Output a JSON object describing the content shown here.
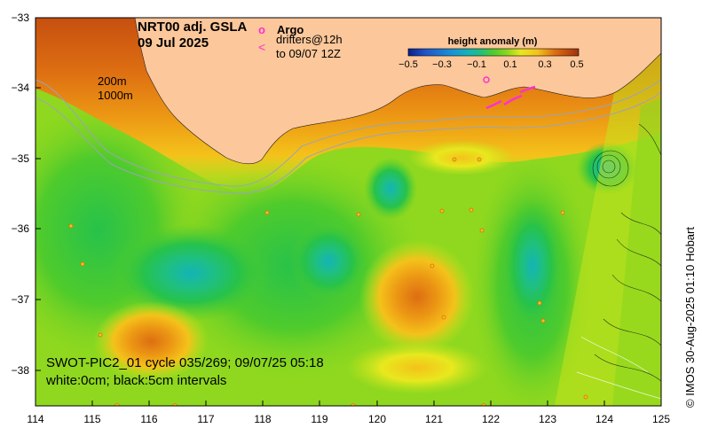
{
  "title": {
    "line1": "NRT00 adj. GSLA",
    "line2": "09 Jul 2025"
  },
  "legend": {
    "argo_symbol": "o",
    "argo_label": "Argo",
    "drifter_symbol": "<",
    "drifter_label_1": "drifters@12h",
    "drifter_label_2": "to 09/07 12Z"
  },
  "colorbar": {
    "title": "height anomaly (m)",
    "ticks": [
      "−0.5",
      "−0.3",
      "−0.1",
      "0.1",
      "0.3",
      "0.5"
    ],
    "colors": [
      "#0b1f8c",
      "#1f55c8",
      "#1c8fd6",
      "#14b3b8",
      "#1ebf84",
      "#27c24a",
      "#4fcb2c",
      "#8bd61f",
      "#c4e41c",
      "#e8e81e",
      "#f4c21a",
      "#ec9614",
      "#dd6e12",
      "#c64f10",
      "#a3300e"
    ]
  },
  "depth_labels": [
    "200m",
    "1000m"
  ],
  "caption": {
    "line1": "SWOT-PIC2_01 cycle 035/269; 09/07/25 05:18",
    "line2": "white:0cm; black:5cm intervals"
  },
  "credit": "© IMOS 30-Aug-2025 01:10 Hobart",
  "axes": {
    "x_ticks": [
      "114",
      "115",
      "116",
      "117",
      "118",
      "119",
      "120",
      "121",
      "122",
      "123",
      "124",
      "125"
    ],
    "y_ticks": [
      "−33",
      "−34",
      "−35",
      "−36",
      "−37",
      "−38"
    ],
    "lon_range": [
      114,
      125
    ],
    "lat_range": [
      -38.5,
      -33
    ]
  },
  "colors": {
    "land": "#fcc79a",
    "background_field": "#8fd81f"
  }
}
